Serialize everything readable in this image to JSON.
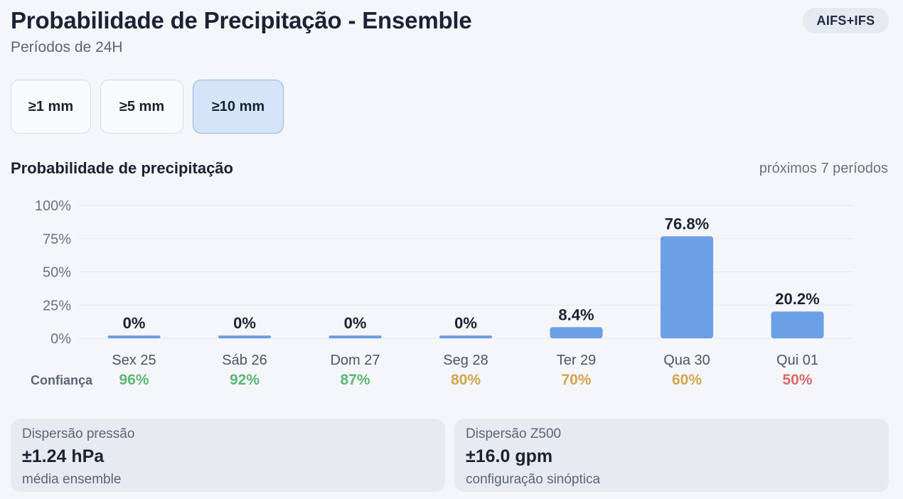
{
  "header": {
    "title": "Probabilidade de Precipitação - Ensemble",
    "subtitle": "Períodos de 24H",
    "badge": "AIFS+IFS"
  },
  "thresholds": [
    {
      "label": "≥1 mm",
      "active": false
    },
    {
      "label": "≥5 mm",
      "active": false
    },
    {
      "label": "≥10 mm",
      "active": true
    }
  ],
  "section": {
    "title": "Probabilidade de precipitação",
    "note": "próximos 7 períodos"
  },
  "colors": {
    "bar": "#6b9fe6",
    "grid": "#e3e7ee",
    "confidence_high": "#5cb874",
    "confidence_mid": "#d4a54e",
    "confidence_low": "#d96a6a"
  },
  "chart_data": {
    "type": "bar",
    "categories": [
      "Sex 25",
      "Sáb 26",
      "Dom 27",
      "Seg 28",
      "Ter 29",
      "Qua 30",
      "Qui 01"
    ],
    "values": [
      0,
      0,
      0,
      0,
      8.4,
      76.8,
      20.2
    ],
    "value_labels": [
      "0%",
      "0%",
      "0%",
      "0%",
      "8.4%",
      "76.8%",
      "20.2%"
    ],
    "ylim": [
      0,
      100
    ],
    "yticks": [
      0,
      25,
      50,
      75,
      100
    ],
    "ytick_labels": [
      "0%",
      "25%",
      "50%",
      "75%",
      "100%"
    ],
    "grid": true,
    "confidence_label": "Confiança",
    "confidence": [
      {
        "label": "96%",
        "level": "high"
      },
      {
        "label": "92%",
        "level": "high"
      },
      {
        "label": "87%",
        "level": "high"
      },
      {
        "label": "80%",
        "level": "mid"
      },
      {
        "label": "70%",
        "level": "mid"
      },
      {
        "label": "60%",
        "level": "mid"
      },
      {
        "label": "50%",
        "level": "low"
      }
    ]
  },
  "stats": [
    {
      "label": "Dispersão pressão",
      "value": "±1.24 hPa",
      "note": "média ensemble"
    },
    {
      "label": "Dispersão Z500",
      "value": "±16.0 gpm",
      "note": "configuração sinóptica"
    }
  ]
}
